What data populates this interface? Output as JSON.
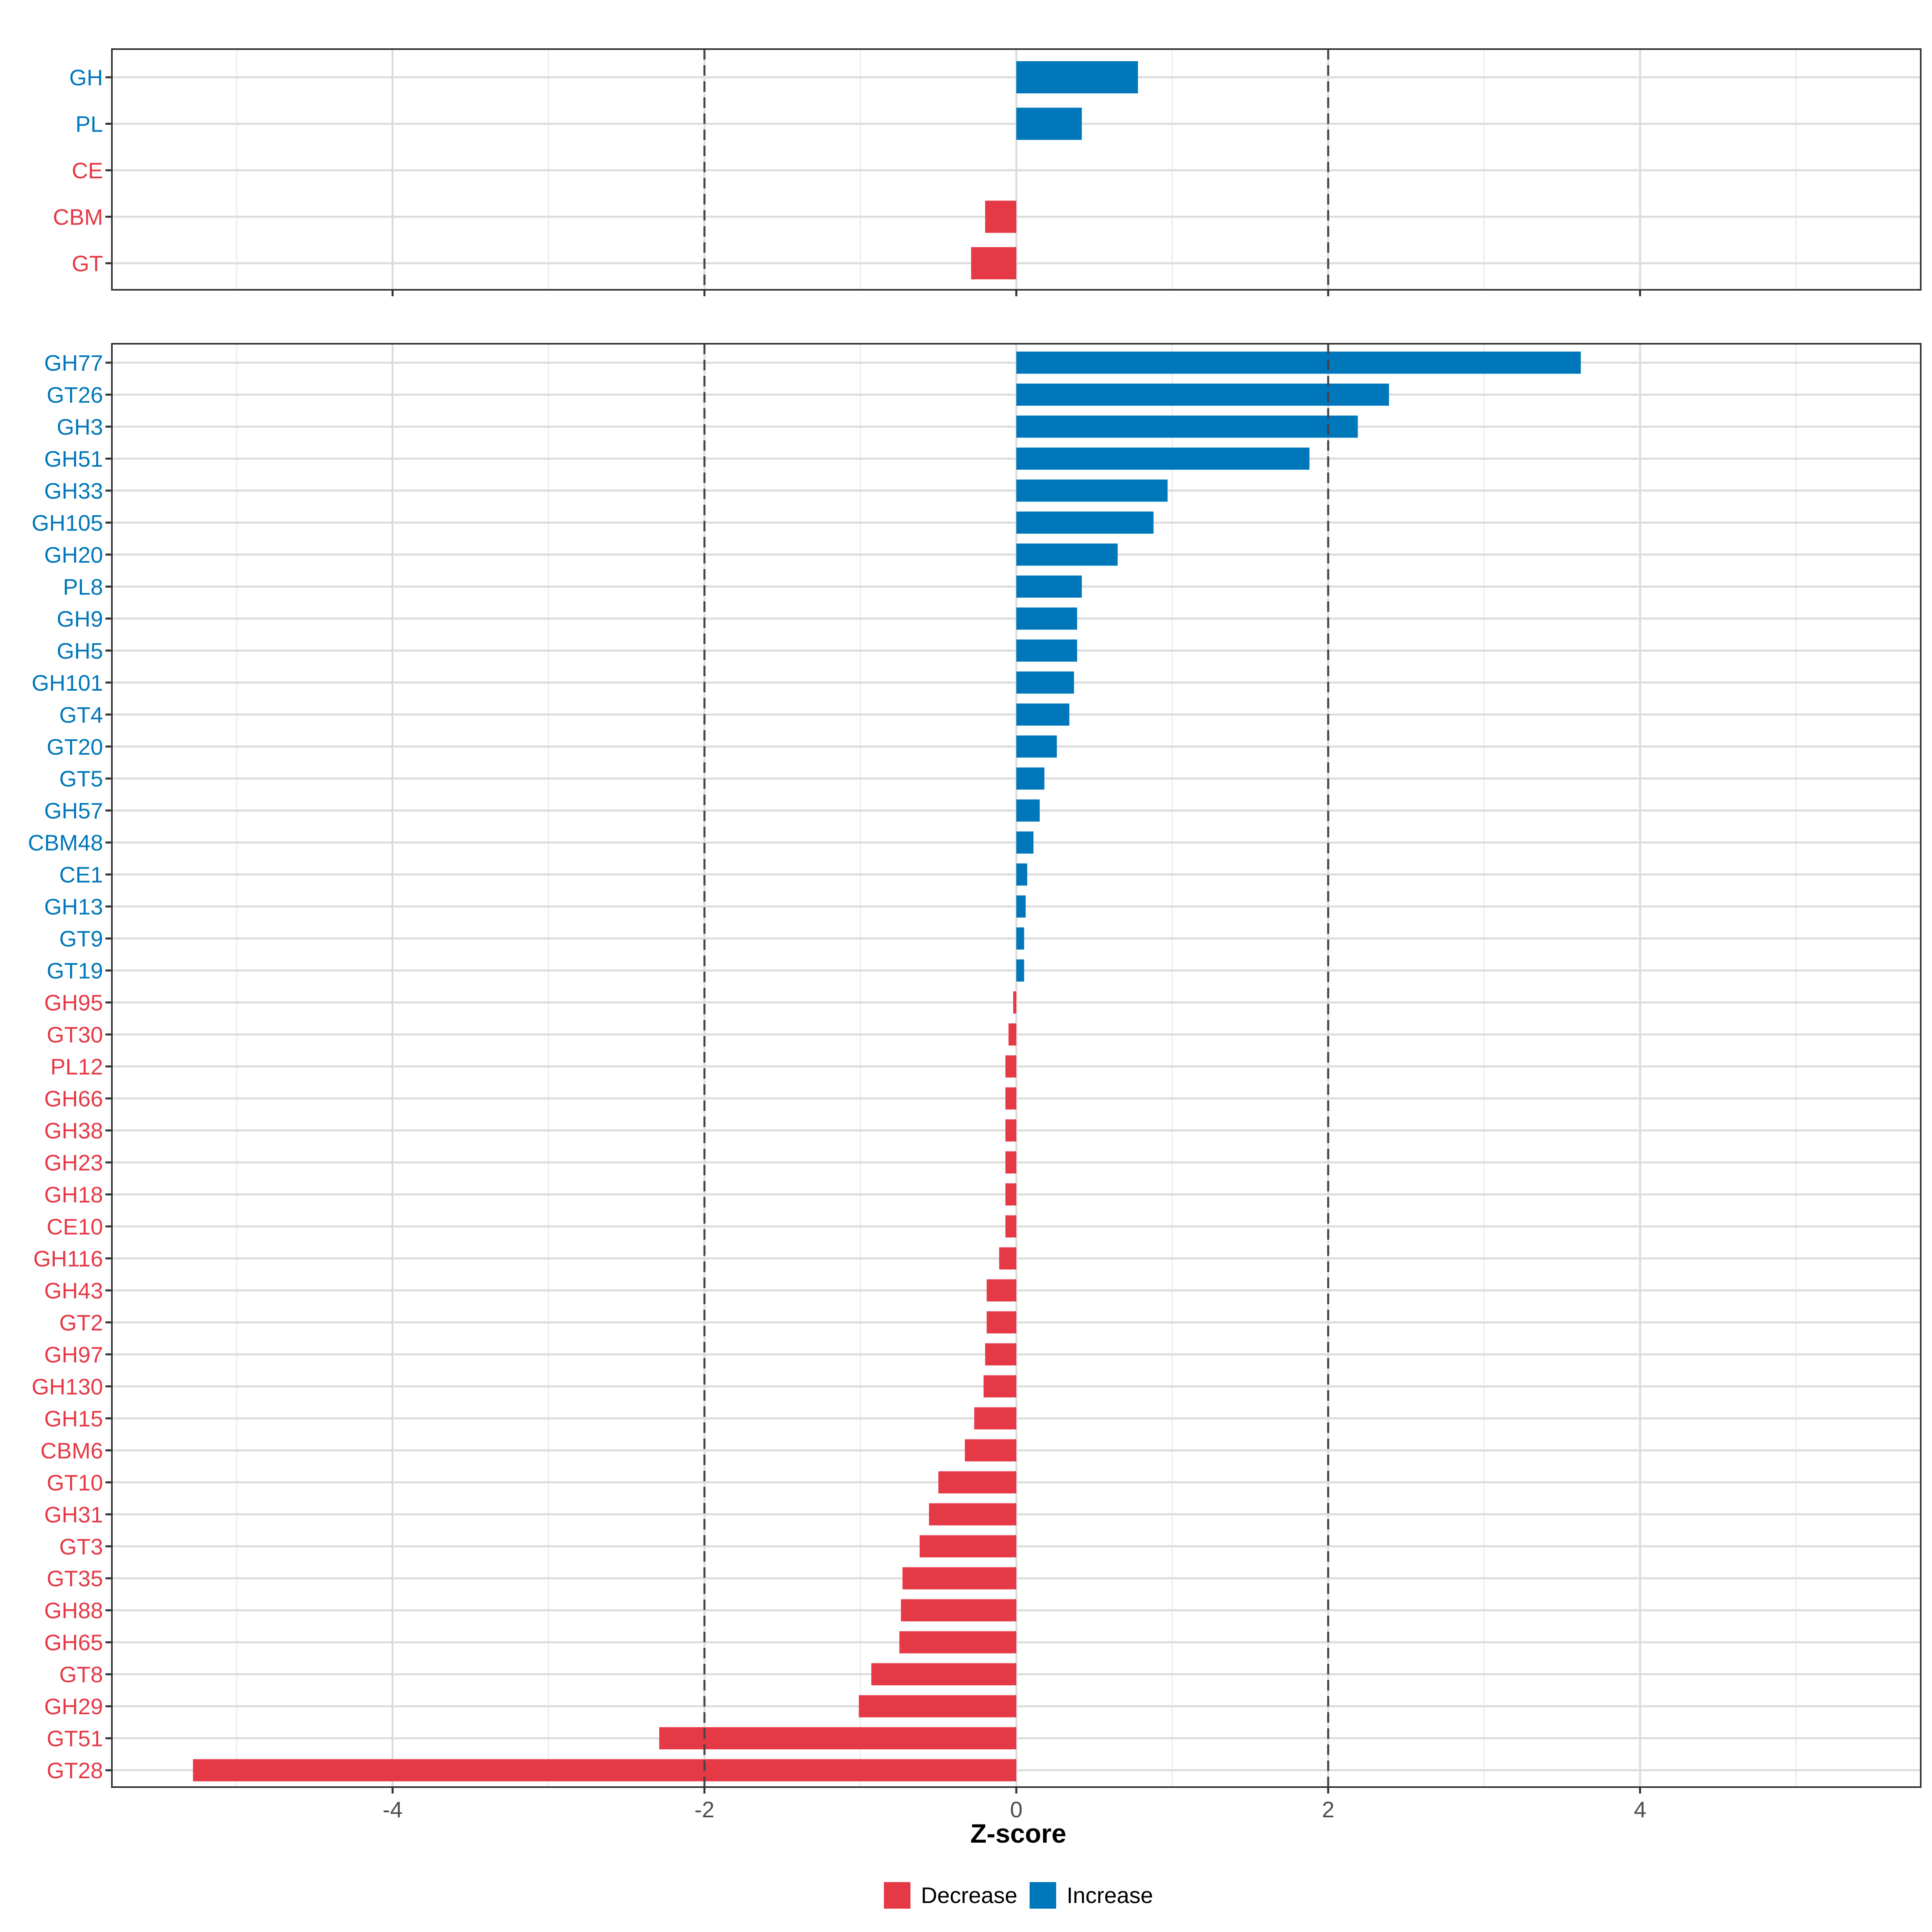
{
  "colors": {
    "decrease": "#E63946",
    "increase": "#0077BB"
  },
  "chart_data": [
    {
      "type": "bar",
      "orientation": "horizontal",
      "panel": "top",
      "categories": [
        "GH",
        "PL",
        "CE",
        "CBM",
        "GT"
      ],
      "values": [
        0.78,
        0.42,
        0.0,
        -0.2,
        -0.29
      ],
      "xlim": [
        -5.8,
        5.8
      ],
      "x_ticks": [
        -4,
        -2,
        0,
        2,
        4
      ],
      "reference_lines": [
        -2,
        2
      ]
    },
    {
      "type": "bar",
      "orientation": "horizontal",
      "panel": "bottom",
      "categories": [
        "GH77",
        "GT26",
        "GH3",
        "GH51",
        "GH33",
        "GH105",
        "GH20",
        "PL8",
        "GH9",
        "GH5",
        "GH101",
        "GT4",
        "GT20",
        "GT5",
        "GH57",
        "CBM48",
        "CE1",
        "GH13",
        "GT9",
        "GT19",
        "GH95",
        "GT30",
        "PL12",
        "GH66",
        "GH38",
        "GH23",
        "GH18",
        "CE10",
        "GH116",
        "GH43",
        "GT2",
        "GH97",
        "GH130",
        "GH15",
        "CBM6",
        "GT10",
        "GH31",
        "GT3",
        "GT35",
        "GH88",
        "GH65",
        "GT8",
        "GH29",
        "GT51",
        "GT28"
      ],
      "values": [
        3.62,
        2.39,
        2.19,
        1.88,
        0.97,
        0.88,
        0.65,
        0.42,
        0.39,
        0.39,
        0.37,
        0.34,
        0.26,
        0.18,
        0.15,
        0.11,
        0.07,
        0.06,
        0.05,
        0.05,
        -0.02,
        -0.05,
        -0.07,
        -0.07,
        -0.07,
        -0.07,
        -0.07,
        -0.07,
        -0.11,
        -0.19,
        -0.19,
        -0.2,
        -0.21,
        -0.27,
        -0.33,
        -0.5,
        -0.56,
        -0.62,
        -0.73,
        -0.74,
        -0.75,
        -0.93,
        -1.01,
        -2.29,
        -5.28
      ],
      "xlim": [
        -5.8,
        5.8
      ],
      "x_ticks": [
        -4,
        -2,
        0,
        2,
        4
      ],
      "x_tick_labels": [
        "-4",
        "-2",
        "0",
        "2",
        "4"
      ],
      "reference_lines": [
        -2,
        2
      ],
      "xlabel": "Z-score"
    }
  ],
  "legend": {
    "placement": "bottom",
    "items": [
      {
        "label": "Decrease",
        "color": "#E63946"
      },
      {
        "label": "Increase",
        "color": "#0077BB"
      }
    ]
  }
}
